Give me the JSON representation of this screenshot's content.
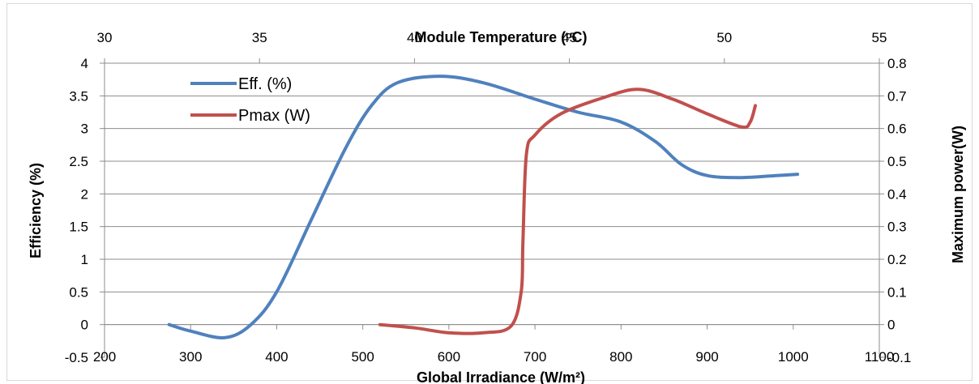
{
  "chart_data": {
    "type": "line",
    "title": "",
    "x_bottom": {
      "label": "Global Irradiance (W/m²)",
      "range": [
        200,
        1100
      ],
      "ticks": [
        200,
        300,
        400,
        500,
        600,
        700,
        800,
        900,
        1000,
        1100
      ]
    },
    "x_top": {
      "label": "Module Temperature (ᵒC)",
      "range": [
        30,
        55
      ],
      "ticks": [
        30,
        35,
        40,
        45,
        50,
        55
      ]
    },
    "y_left": {
      "label": "Efficiency (%)",
      "range": [
        -0.5,
        4
      ],
      "ticks": [
        -0.5,
        0,
        0.5,
        1,
        1.5,
        2,
        2.5,
        3,
        3.5,
        4
      ]
    },
    "y_right": {
      "label": "Maximum power(W)",
      "range": [
        -0.1,
        0.8
      ],
      "ticks": [
        -0.1,
        0,
        0.1,
        0.2,
        0.3,
        0.4,
        0.5,
        0.6,
        0.7,
        0.8
      ]
    },
    "grid": true,
    "legend_position": "top-left",
    "series": [
      {
        "name": "Eff. (%)",
        "axis": "left",
        "color": "#4f81bd",
        "x": [
          275,
          300,
          340,
          370,
          400,
          440,
          480,
          510,
          540,
          590,
          640,
          700,
          750,
          800,
          840,
          870,
          900,
          940,
          980,
          1005
        ],
        "y": [
          0.0,
          -0.1,
          -0.2,
          0.0,
          0.5,
          1.6,
          2.7,
          3.35,
          3.7,
          3.8,
          3.7,
          3.45,
          3.25,
          3.1,
          2.8,
          2.45,
          2.28,
          2.25,
          2.28,
          2.3
        ]
      },
      {
        "name": "Pmax (W)",
        "axis": "right",
        "color": "#c0504d",
        "x": [
          520,
          560,
          600,
          640,
          672,
          684,
          686,
          690,
          700,
          730,
          780,
          820,
          860,
          900,
          940,
          950,
          956
        ],
        "y": [
          0.0,
          -0.01,
          -0.025,
          -0.025,
          -0.005,
          0.1,
          0.25,
          0.52,
          0.58,
          0.645,
          0.695,
          0.72,
          0.69,
          0.645,
          0.605,
          0.62,
          0.67
        ]
      }
    ]
  }
}
